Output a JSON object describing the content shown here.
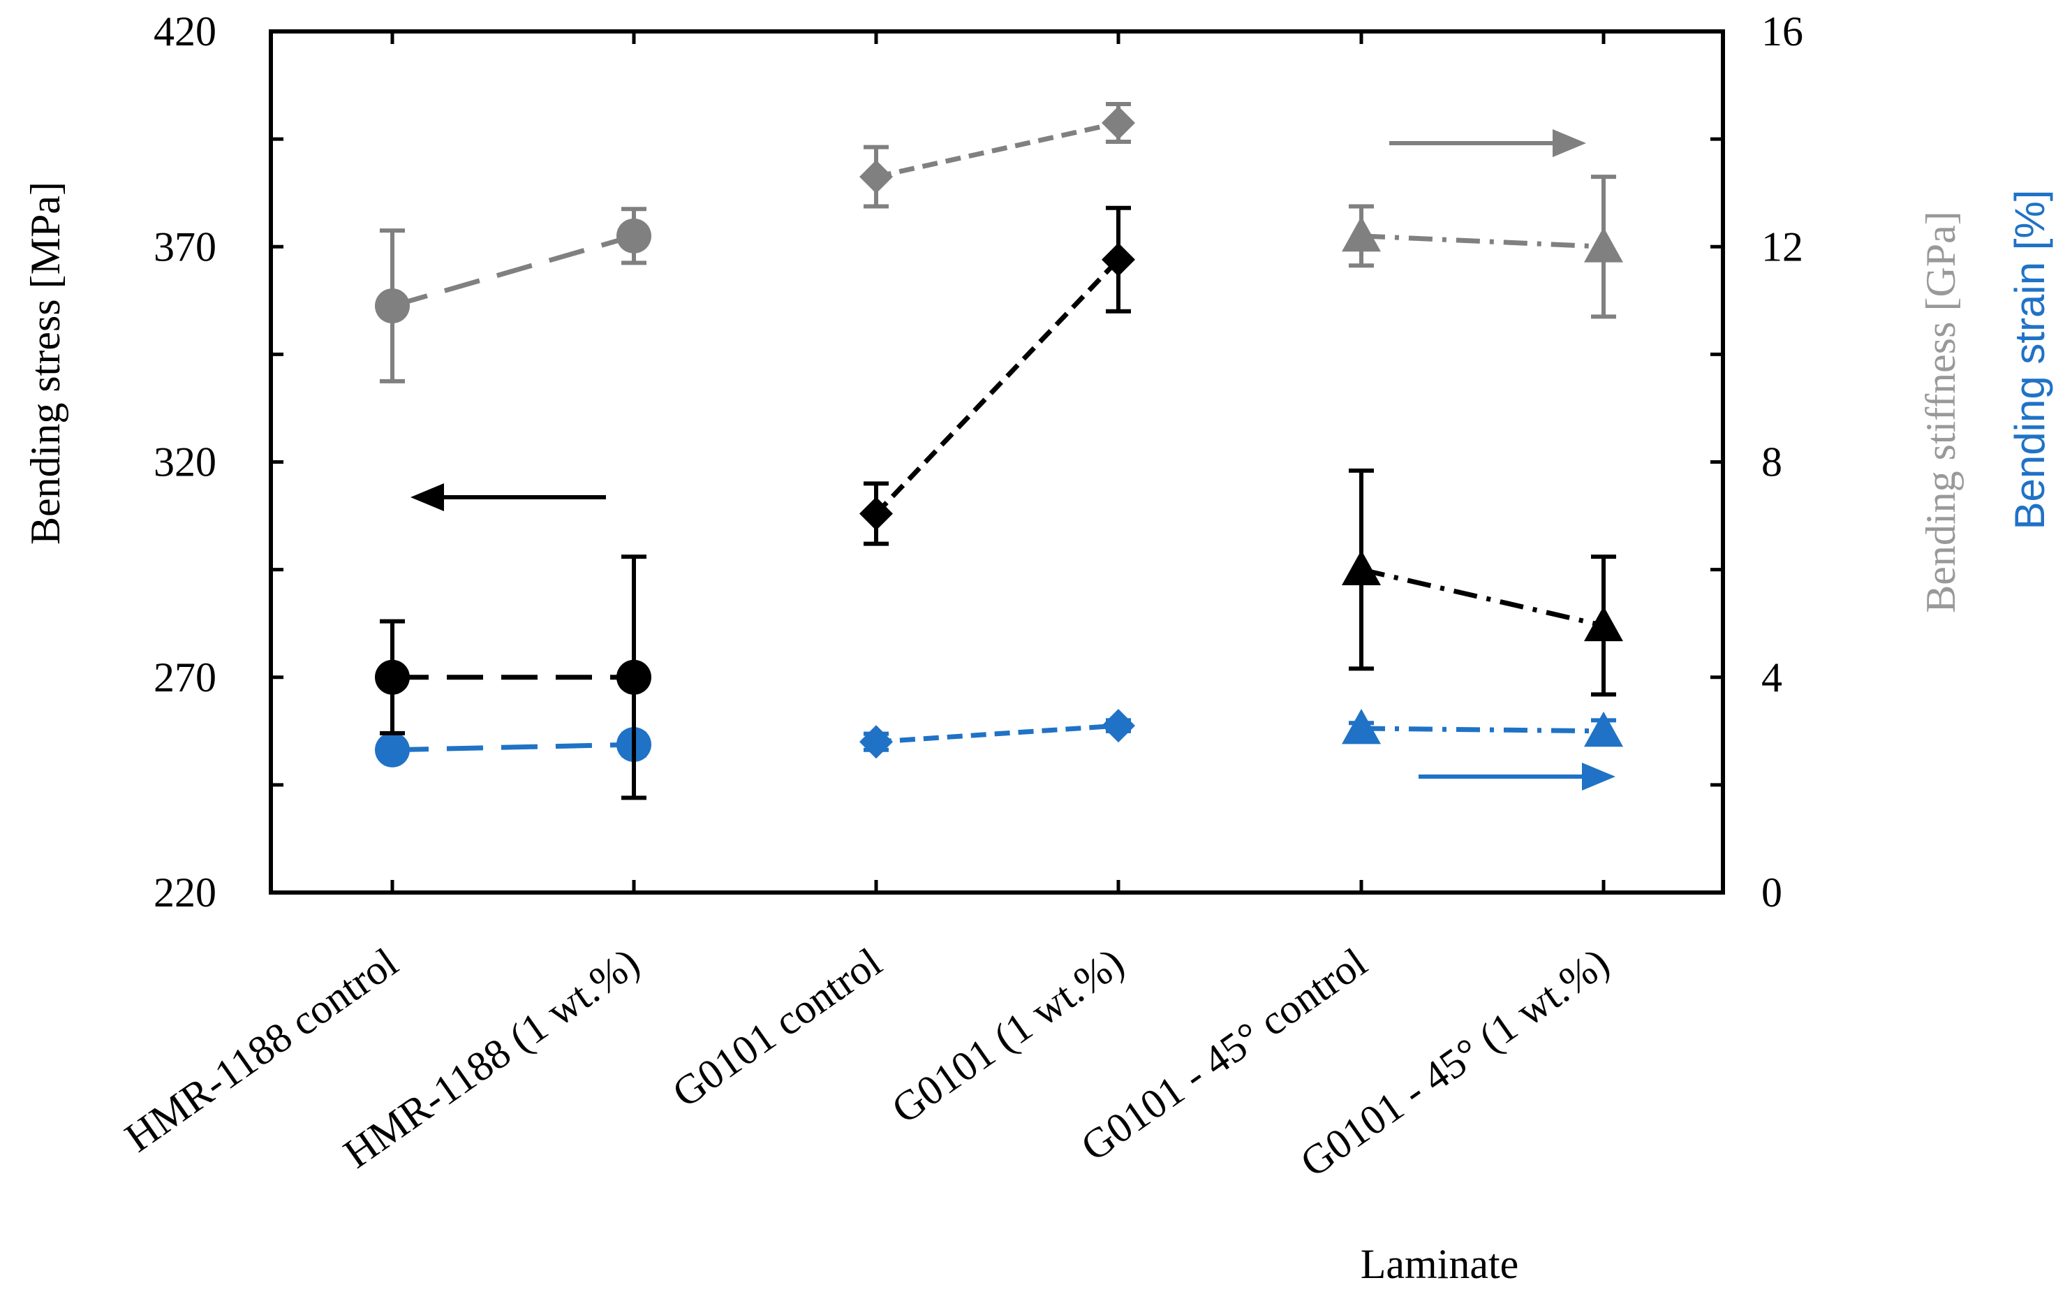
{
  "chart_data": {
    "type": "line",
    "title": "",
    "xlabel": "Laminate",
    "categories": [
      "HMR-1188 control",
      "HMR-1188 (1 wt.%)",
      "G0101 control",
      "G0101 (1 wt.%)",
      "G0101 - 45° control",
      "G0101 - 45° (1 wt.%)"
    ],
    "left_axis": {
      "label": "Bending stress  [MPa]",
      "ylim": [
        220,
        420
      ],
      "ticks": [
        "220",
        "270",
        "320",
        "370",
        "420"
      ]
    },
    "right_axis": {
      "label_stiffness": "Bending stiffness  [GPa]",
      "label_strain": "Bending strain [%]",
      "ylim": [
        0,
        16
      ],
      "ticks": [
        "0",
        "4",
        "8",
        "12",
        "16"
      ]
    },
    "colors": {
      "stress": "#000000",
      "stiffness": "#808080",
      "strain": "#1F72C6"
    },
    "series": [
      {
        "quantity": "stress",
        "axis": "left",
        "marker": "circle",
        "dash": "long",
        "points": [
          [
            0,
            270,
            13
          ],
          [
            1,
            270,
            28
          ]
        ]
      },
      {
        "quantity": "stress",
        "axis": "left",
        "marker": "diamond",
        "dash": "short",
        "points": [
          [
            2,
            308,
            7
          ],
          [
            3,
            367,
            12
          ]
        ]
      },
      {
        "quantity": "stress",
        "axis": "left",
        "marker": "triangle",
        "dash": "dashdot",
        "points": [
          [
            4,
            295,
            23
          ],
          [
            5,
            282,
            16
          ]
        ]
      },
      {
        "quantity": "stiffness",
        "axis": "right",
        "marker": "circle",
        "dash": "long",
        "points": [
          [
            0,
            10.9,
            1.4
          ],
          [
            1,
            12.2,
            0.5
          ]
        ]
      },
      {
        "quantity": "stiffness",
        "axis": "right",
        "marker": "diamond",
        "dash": "short",
        "points": [
          [
            2,
            13.3,
            0.55
          ],
          [
            3,
            14.3,
            0.35
          ]
        ]
      },
      {
        "quantity": "stiffness",
        "axis": "right",
        "marker": "triangle",
        "dash": "dashdot",
        "points": [
          [
            4,
            12.2,
            0.55
          ],
          [
            5,
            12.0,
            1.3
          ]
        ]
      },
      {
        "quantity": "strain",
        "axis": "right",
        "marker": "circle",
        "dash": "long",
        "points": [
          [
            0,
            2.65,
            0.12
          ],
          [
            1,
            2.75,
            0.2
          ]
        ]
      },
      {
        "quantity": "strain",
        "axis": "right",
        "marker": "diamond",
        "dash": "short",
        "points": [
          [
            2,
            2.8,
            0.15
          ],
          [
            3,
            3.1,
            0.1
          ]
        ]
      },
      {
        "quantity": "strain",
        "axis": "right",
        "marker": "triangle",
        "dash": "dashdot",
        "points": [
          [
            4,
            3.05,
            0.1
          ],
          [
            5,
            3.0,
            0.2
          ]
        ]
      }
    ],
    "annotations": [
      {
        "type": "arrow",
        "direction": "left",
        "indicates_axis": "left",
        "color": "stress"
      },
      {
        "type": "arrow",
        "direction": "right",
        "indicates_axis": "right",
        "color": "stiffness"
      },
      {
        "type": "arrow",
        "direction": "right",
        "indicates_axis": "right",
        "color": "strain"
      }
    ],
    "grid": false,
    "legend": "none"
  }
}
